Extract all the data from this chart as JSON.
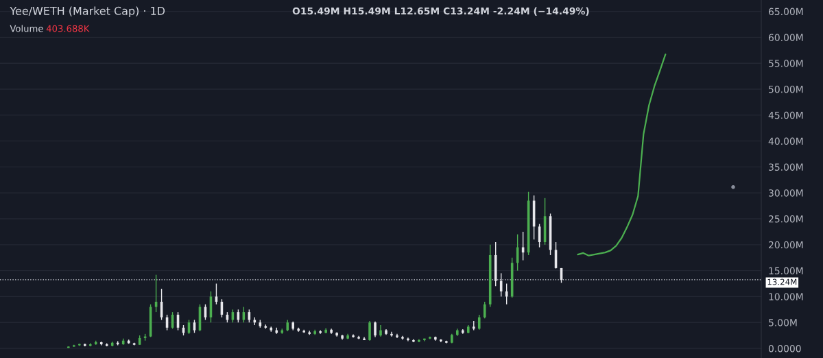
{
  "chart_data": [
    {
      "type": "candlestick",
      "title": "Yee/WETH (Market Cap) · 1D",
      "annotations": [
        "O15.49M H15.49M L12.65M C13.24M -2.24M (−14.49%)",
        "Volume",
        "403.688K"
      ],
      "categories": [
        null,
        null,
        null,
        null,
        null,
        null,
        null,
        null,
        null,
        null,
        null,
        null,
        null,
        null,
        null,
        null,
        null,
        null,
        null,
        null,
        null,
        null,
        null,
        null,
        null,
        null,
        null,
        null,
        null,
        null,
        null,
        null,
        null,
        null,
        null,
        null,
        null,
        null,
        null,
        null,
        null,
        null,
        null,
        null,
        null,
        null,
        null,
        null,
        null,
        null,
        null,
        null,
        null,
        null,
        null,
        null,
        null,
        null,
        null,
        null,
        null,
        null,
        null,
        null,
        null,
        null,
        null,
        null,
        null,
        null,
        null,
        null,
        null,
        null,
        null,
        null,
        null,
        null,
        null,
        null,
        null,
        null,
        null,
        null,
        null,
        null,
        null,
        null,
        null,
        null,
        null,
        null,
        null,
        null,
        null,
        null,
        null,
        null,
        null,
        null,
        null,
        null,
        null,
        null,
        null,
        null,
        null,
        null,
        null,
        null,
        null,
        null,
        null,
        null,
        null,
        null,
        null,
        null,
        null,
        null,
        null,
        null,
        null,
        null,
        null,
        null,
        null,
        null,
        null,
        null,
        null,
        null,
        null,
        null,
        null,
        null,
        null,
        null,
        null
      ],
      "ohlc": [
        null,
        null,
        null,
        null,
        null,
        null,
        null,
        null,
        null,
        null,
        null,
        null,
        [
          0.1,
          0.4,
          0.1,
          0.35
        ],
        [
          0.35,
          0.7,
          0.3,
          0.6
        ],
        [
          0.6,
          0.9,
          0.5,
          0.85
        ],
        [
          0.85,
          0.9,
          0.4,
          0.5
        ],
        [
          0.5,
          1.0,
          0.4,
          0.8
        ],
        [
          0.8,
          1.5,
          0.7,
          1.2
        ],
        [
          1.2,
          1.3,
          0.6,
          0.8
        ],
        [
          0.8,
          1.0,
          0.4,
          0.5
        ],
        [
          0.5,
          1.3,
          0.4,
          1.1
        ],
        [
          1.1,
          1.4,
          0.6,
          0.8
        ],
        [
          0.8,
          1.9,
          0.7,
          1.5
        ],
        [
          1.5,
          1.7,
          0.9,
          1.0
        ],
        [
          1.0,
          1.1,
          0.6,
          0.7
        ],
        [
          0.7,
          2.5,
          0.7,
          2.0
        ],
        [
          2.0,
          2.8,
          1.5,
          2.3
        ],
        [
          2.3,
          8.5,
          2.2,
          8.0
        ],
        [
          8.0,
          14.2,
          7.0,
          9.0
        ],
        [
          9.0,
          11.5,
          5.5,
          6.0
        ],
        [
          6.0,
          6.5,
          3.5,
          4.0
        ],
        [
          4.0,
          7.0,
          3.8,
          6.5
        ],
        [
          6.5,
          7.0,
          3.5,
          4.0
        ],
        [
          4.0,
          4.5,
          2.5,
          3.0
        ],
        [
          3.0,
          5.5,
          2.8,
          5.0
        ],
        [
          5.0,
          5.5,
          3.0,
          3.5
        ],
        [
          3.5,
          8.5,
          3.3,
          8.0
        ],
        [
          8.0,
          8.5,
          5.5,
          6.0
        ],
        [
          6.0,
          11.0,
          5.0,
          10.0
        ],
        [
          10.0,
          12.5,
          8.5,
          9.0
        ],
        [
          9.0,
          9.5,
          6.0,
          6.5
        ],
        [
          6.5,
          7.0,
          5.0,
          5.5
        ],
        [
          5.5,
          7.5,
          5.0,
          7.0
        ],
        [
          7.0,
          7.5,
          5.0,
          5.5
        ],
        [
          5.5,
          8.0,
          5.0,
          7.0
        ],
        [
          7.0,
          7.5,
          5.0,
          5.5
        ],
        [
          5.5,
          6.0,
          4.5,
          5.0
        ],
        [
          5.0,
          5.5,
          4.0,
          4.3
        ],
        [
          4.3,
          4.6,
          3.8,
          4.0
        ],
        [
          4.0,
          4.2,
          3.2,
          3.5
        ],
        [
          3.5,
          4.0,
          2.8,
          3.0
        ],
        [
          3.0,
          3.8,
          2.8,
          3.5
        ],
        [
          3.5,
          5.5,
          3.3,
          5.0
        ],
        [
          5.0,
          5.2,
          3.5,
          3.8
        ],
        [
          3.8,
          4.0,
          3.2,
          3.4
        ],
        [
          3.4,
          3.6,
          3.0,
          3.1
        ],
        [
          3.1,
          3.4,
          2.6,
          2.8
        ],
        [
          2.8,
          3.6,
          2.6,
          3.3
        ],
        [
          3.3,
          3.5,
          2.8,
          3.0
        ],
        [
          3.0,
          3.9,
          2.9,
          3.6
        ],
        [
          3.6,
          3.8,
          2.8,
          3.0
        ],
        [
          3.0,
          3.1,
          2.3,
          2.5
        ],
        [
          2.5,
          2.6,
          1.7,
          1.9
        ],
        [
          1.9,
          2.8,
          1.8,
          2.5
        ],
        [
          2.5,
          2.7,
          2.1,
          2.2
        ],
        [
          2.2,
          2.4,
          1.8,
          1.9
        ],
        [
          1.9,
          2.2,
          1.6,
          1.6
        ],
        [
          1.6,
          5.3,
          1.5,
          5.0
        ],
        [
          5.0,
          5.2,
          2.2,
          2.5
        ],
        [
          2.5,
          4.5,
          2.3,
          3.5
        ],
        [
          3.5,
          3.7,
          2.6,
          2.8
        ],
        [
          2.8,
          3.2,
          2.3,
          2.5
        ],
        [
          2.5,
          2.8,
          2.0,
          2.2
        ],
        [
          2.2,
          2.4,
          1.7,
          1.9
        ],
        [
          1.9,
          2.1,
          1.4,
          1.6
        ],
        [
          1.6,
          1.8,
          1.2,
          1.3
        ],
        [
          1.3,
          1.8,
          1.2,
          1.6
        ],
        [
          1.6,
          1.9,
          1.4,
          1.9
        ],
        [
          1.9,
          2.3,
          1.8,
          2.2
        ],
        [
          2.2,
          2.3,
          1.5,
          1.7
        ],
        [
          1.7,
          1.8,
          1.2,
          1.4
        ],
        [
          1.4,
          1.5,
          1.0,
          1.1
        ],
        [
          1.1,
          2.8,
          1.0,
          2.6
        ],
        [
          2.6,
          3.8,
          2.4,
          3.5
        ],
        [
          3.5,
          3.7,
          2.8,
          3.0
        ],
        [
          3.0,
          4.5,
          2.9,
          4.2
        ],
        [
          4.2,
          5.3,
          3.5,
          3.8
        ],
        [
          3.8,
          6.5,
          3.6,
          6.0
        ],
        [
          6.0,
          9.0,
          5.8,
          8.5
        ],
        [
          8.5,
          20.0,
          8.0,
          18.0
        ],
        [
          18.0,
          20.5,
          12.0,
          13.0
        ],
        [
          13.0,
          14.5,
          10.0,
          11.0
        ],
        [
          11.0,
          12.5,
          8.5,
          10.0
        ],
        [
          10.0,
          17.5,
          9.8,
          16.5
        ],
        [
          16.5,
          22.0,
          15.0,
          19.5
        ],
        [
          19.5,
          22.5,
          17.0,
          18.5
        ],
        [
          18.5,
          30.2,
          18.0,
          28.5
        ],
        [
          28.5,
          29.5,
          21.0,
          23.5
        ],
        [
          23.5,
          24.0,
          19.5,
          20.5
        ],
        [
          20.5,
          29.0,
          20.0,
          25.5
        ],
        [
          25.5,
          26.0,
          18.0,
          19.0
        ],
        [
          19.0,
          20.5,
          15.4,
          15.49
        ],
        [
          15.49,
          15.49,
          12.65,
          13.24
        ],
        null,
        null,
        null,
        null,
        null,
        null,
        null,
        null,
        null,
        null,
        null,
        null,
        null,
        null,
        null,
        null,
        null,
        null,
        null,
        null,
        null,
        null,
        null,
        null,
        null,
        null,
        null,
        null,
        null,
        null,
        null,
        null,
        null,
        null,
        null,
        null
      ],
      "colors": [
        null,
        null,
        null,
        null,
        null,
        null,
        null,
        null,
        null,
        null,
        null,
        null,
        "#4caf50",
        "#4caf50",
        "#4caf50",
        "#e8e8ec",
        "#4caf50",
        "#4caf50",
        "#e8e8ec",
        "#e8e8ec",
        "#4caf50",
        "#e8e8ec",
        "#4caf50",
        "#e8e8ec",
        "#e8e8ec",
        "#4caf50",
        "#4caf50",
        "#4caf50",
        "#4caf50",
        "#e8e8ec",
        "#e8e8ec",
        "#4caf50",
        "#e8e8ec",
        "#e8e8ec",
        "#4caf50",
        "#e8e8ec",
        "#4caf50",
        "#e8e8ec",
        "#4caf50",
        "#e8e8ec",
        "#e8e8ec",
        "#e8e8ec",
        "#4caf50",
        "#e8e8ec",
        "#4caf50",
        "#e8e8ec",
        "#e8e8ec",
        "#e8e8ec",
        "#e8e8ec",
        "#e8e8ec",
        "#e8e8ec",
        "#4caf50",
        "#4caf50",
        "#e8e8ec",
        "#e8e8ec",
        "#e8e8ec",
        "#e8e8ec",
        "#4caf50",
        "#e8e8ec",
        "#4caf50",
        "#e8e8ec",
        "#e8e8ec",
        "#e8e8ec",
        "#4caf50",
        "#e8e8ec",
        "#e8e8ec",
        "#e8e8ec",
        "#4caf50",
        "#e8e8ec",
        "#4caf50",
        "#e8e8ec",
        "#e8e8ec",
        "#e8e8ec",
        "#e8e8ec",
        "#e8e8ec",
        "#e8e8ec",
        "#4caf50",
        "#4caf50",
        "#4caf50",
        "#e8e8ec",
        "#e8e8ec",
        "#e8e8ec",
        "#4caf50",
        "#4caf50",
        "#e8e8ec",
        "#4caf50",
        "#e8e8ec",
        "#4caf50",
        "#4caf50",
        "#4caf50",
        "#e8e8ec",
        "#e8e8ec",
        "#e8e8ec",
        "#4caf50",
        "#4caf50",
        "#e8e8ec",
        "#4caf50",
        "#e8e8ec",
        "#e8e8ec",
        "#4caf50",
        "#e8e8ec",
        "#e8e8ec",
        "#e8e8ec",
        null,
        null,
        null,
        null,
        null,
        null,
        null,
        null,
        null,
        null,
        null,
        null,
        null,
        null,
        null,
        null,
        null,
        null,
        null,
        null,
        null,
        null,
        null,
        null,
        null,
        null,
        null,
        null,
        null,
        null,
        null,
        null,
        null,
        null,
        null,
        null
      ],
      "ref_lines": [
        {
          "axis": "y",
          "value": 13.24,
          "label": "13.24M",
          "color": "#d1d4dc",
          "line_style": "dotted"
        }
      ],
      "ylim": [
        -1.85,
        67.2
      ],
      "yticks": [
        {
          "value": 0,
          "label": "0.0000"
        },
        {
          "value": 5,
          "label": "5.00M"
        },
        {
          "value": 10,
          "label": "10.00M"
        },
        {
          "value": 15,
          "label": "15.00M"
        },
        {
          "value": 20,
          "label": "20.00M"
        },
        {
          "value": 25,
          "label": "25.00M"
        },
        {
          "value": 30,
          "label": "30.00M"
        },
        {
          "value": 35,
          "label": "35.00M"
        },
        {
          "value": 40,
          "label": "40.00M"
        },
        {
          "value": 45,
          "label": "45.00M"
        },
        {
          "value": 50,
          "label": "50.00M"
        },
        {
          "value": 55,
          "label": "55.00M"
        },
        {
          "value": 60,
          "label": "60.00M"
        },
        {
          "value": 65,
          "label": "65.00M"
        }
      ],
      "series": [
        {
          "type": "line",
          "color": "#4caf50",
          "values": [
            null,
            null,
            null,
            null,
            null,
            null,
            null,
            null,
            null,
            null,
            null,
            null,
            null,
            null,
            null,
            null,
            null,
            null,
            null,
            null,
            null,
            null,
            null,
            null,
            null,
            null,
            null,
            null,
            null,
            null,
            null,
            null,
            null,
            null,
            null,
            null,
            null,
            null,
            null,
            null,
            null,
            null,
            null,
            null,
            null,
            null,
            null,
            null,
            null,
            null,
            null,
            null,
            null,
            null,
            null,
            null,
            null,
            null,
            null,
            null,
            null,
            null,
            null,
            null,
            null,
            null,
            null,
            null,
            null,
            null,
            null,
            null,
            null,
            null,
            null,
            null,
            null,
            null,
            null,
            null,
            null,
            null,
            null,
            null,
            null,
            null,
            null,
            null,
            null,
            null,
            null,
            null,
            null,
            null,
            null,
            null,
            null,
            null,
            null,
            null,
            null,
            null,
            null,
            null,
            null,
            18.1,
            18.4,
            17.9,
            18.1,
            18.3,
            18.5,
            18.9,
            19.8,
            21.3,
            23.4,
            25.8,
            29.4,
            41.3,
            46.9,
            50.6,
            53.6,
            56.7,
            null,
            null,
            null,
            null,
            null,
            null,
            null,
            null,
            null,
            null,
            null,
            null,
            null,
            null,
            null,
            null,
            null
          ]
        }
      ],
      "tick_labels": "y",
      "grid": "y"
    }
  ]
}
